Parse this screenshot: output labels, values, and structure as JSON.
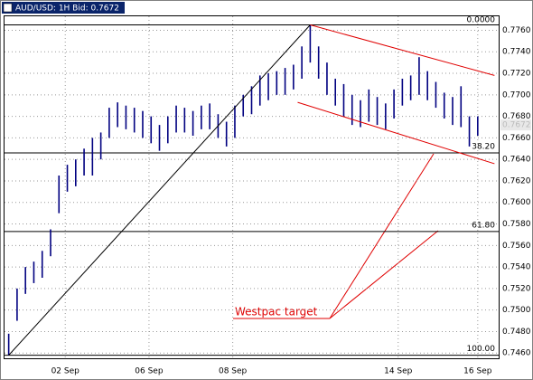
{
  "chart_data": {
    "type": "ohlc",
    "title": "AUD/USD: 1H Bid: 0.7672",
    "xlim": [
      0,
      118
    ],
    "xticks": [
      {
        "value": 14.5,
        "label": "02 Sep"
      },
      {
        "value": 34.5,
        "label": "06 Sep"
      },
      {
        "value": 54.5,
        "label": "08 Sep"
      },
      {
        "value": 94,
        "label": "14 Sep"
      },
      {
        "value": 113,
        "label": "16 Sep"
      }
    ],
    "ylim": [
      0.7456,
      0.7773
    ],
    "yticks": [
      {
        "value": 0.746,
        "label": "0.7460"
      },
      {
        "value": 0.748,
        "label": "0.7480"
      },
      {
        "value": 0.75,
        "label": "0.7500"
      },
      {
        "value": 0.752,
        "label": "0.7520"
      },
      {
        "value": 0.754,
        "label": "0.7540"
      },
      {
        "value": 0.756,
        "label": "0.7560"
      },
      {
        "value": 0.758,
        "label": "0.7580"
      },
      {
        "value": 0.76,
        "label": "0.7600"
      },
      {
        "value": 0.762,
        "label": "0.7620"
      },
      {
        "value": 0.764,
        "label": "0.7640"
      },
      {
        "value": 0.766,
        "label": "0.7660"
      },
      {
        "value": 0.768,
        "label": "0.7680"
      },
      {
        "value": 0.77,
        "label": "0.7700"
      },
      {
        "value": 0.772,
        "label": "0.7720"
      },
      {
        "value": 0.774,
        "label": "0.7740"
      },
      {
        "value": 0.776,
        "label": "0.7760"
      }
    ],
    "grid": true,
    "color": "#000080",
    "x": [
      1,
      3,
      5,
      7,
      9,
      11,
      13,
      15,
      17,
      19,
      21,
      23,
      25,
      27,
      29,
      31,
      33,
      35,
      37,
      39,
      41,
      43,
      45,
      47,
      49,
      51,
      53,
      55,
      57,
      59,
      61,
      63,
      65,
      67,
      69,
      71,
      73,
      75,
      77,
      79,
      81,
      83,
      85,
      87,
      89,
      91,
      93,
      95,
      97,
      99,
      101,
      103,
      105,
      107,
      109,
      111,
      113
    ],
    "low": [
      0.7458,
      0.749,
      0.7515,
      0.7525,
      0.753,
      0.755,
      0.759,
      0.761,
      0.7615,
      0.7625,
      0.7625,
      0.764,
      0.766,
      0.767,
      0.7668,
      0.7665,
      0.766,
      0.7655,
      0.7648,
      0.7655,
      0.7665,
      0.7665,
      0.7662,
      0.7668,
      0.7668,
      0.766,
      0.7652,
      0.766,
      0.768,
      0.7682,
      0.769,
      0.7695,
      0.77,
      0.77,
      0.7705,
      0.7715,
      0.773,
      0.7715,
      0.77,
      0.769,
      0.768,
      0.7672,
      0.767,
      0.7675,
      0.7672,
      0.7668,
      0.7678,
      0.769,
      0.7695,
      0.77,
      0.7695,
      0.7688,
      0.7678,
      0.7672,
      0.767,
      0.7652,
      0.7662
    ],
    "high": [
      0.7478,
      0.752,
      0.754,
      0.7545,
      0.7555,
      0.7575,
      0.7625,
      0.7635,
      0.764,
      0.765,
      0.766,
      0.7665,
      0.7688,
      0.7693,
      0.769,
      0.7688,
      0.7685,
      0.768,
      0.7672,
      0.768,
      0.769,
      0.7688,
      0.7685,
      0.769,
      0.7692,
      0.7682,
      0.7675,
      0.769,
      0.77,
      0.7708,
      0.7718,
      0.772,
      0.7722,
      0.7725,
      0.7728,
      0.7745,
      0.7765,
      0.7745,
      0.773,
      0.7715,
      0.771,
      0.77,
      0.7695,
      0.7705,
      0.7698,
      0.7692,
      0.7705,
      0.7715,
      0.7718,
      0.7735,
      0.7722,
      0.7712,
      0.7702,
      0.7698,
      0.7708,
      0.768,
      0.768
    ],
    "last_price": {
      "value": 0.7672,
      "label": "0.7672"
    },
    "fib_levels": [
      {
        "value": 0.7765,
        "label": "0.0000"
      },
      {
        "value": 0.7646,
        "label": "38.20"
      },
      {
        "value": 0.7573,
        "label": "61.80"
      },
      {
        "value": 0.7458,
        "label": "100.00"
      }
    ],
    "trendlines": [
      {
        "color": "#000000",
        "x": [
          1,
          73
        ],
        "values": [
          0.7458,
          0.7765
        ]
      },
      {
        "color": "#e00000",
        "x": [
          73,
          117
        ],
        "values": [
          0.7765,
          0.7718
        ]
      },
      {
        "color": "#e00000",
        "x": [
          70,
          117
        ],
        "values": [
          0.7693,
          0.7636
        ]
      }
    ],
    "annotation": "Westpac target"
  }
}
